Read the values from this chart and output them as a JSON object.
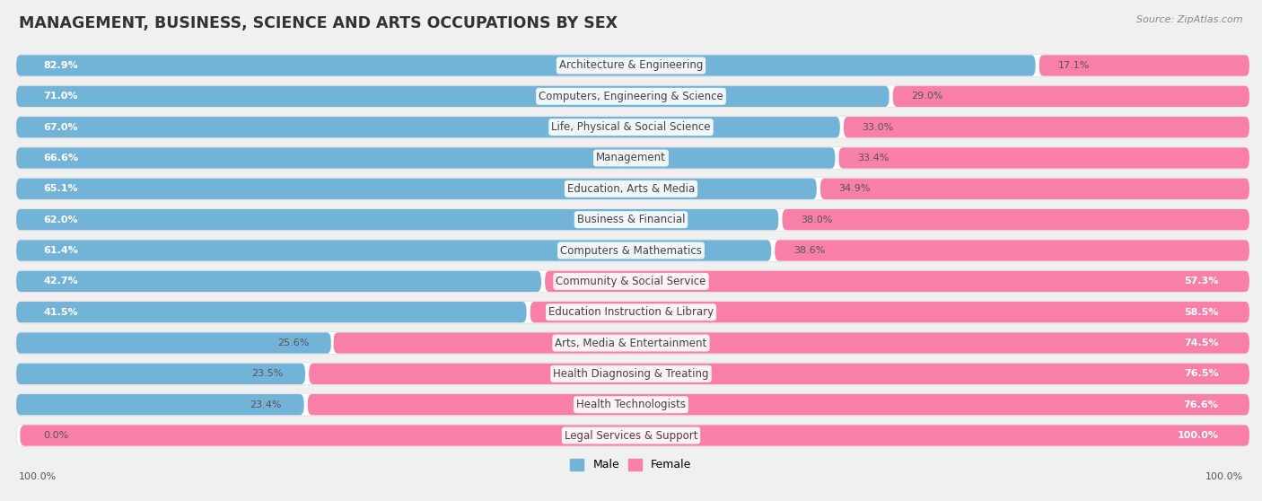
{
  "title": "MANAGEMENT, BUSINESS, SCIENCE AND ARTS OCCUPATIONS BY SEX",
  "source": "Source: ZipAtlas.com",
  "categories": [
    "Architecture & Engineering",
    "Computers, Engineering & Science",
    "Life, Physical & Social Science",
    "Management",
    "Education, Arts & Media",
    "Business & Financial",
    "Computers & Mathematics",
    "Community & Social Service",
    "Education Instruction & Library",
    "Arts, Media & Entertainment",
    "Health Diagnosing & Treating",
    "Health Technologists",
    "Legal Services & Support"
  ],
  "male": [
    82.9,
    71.0,
    67.0,
    66.6,
    65.1,
    62.0,
    61.4,
    42.7,
    41.5,
    25.6,
    23.5,
    23.4,
    0.0
  ],
  "female": [
    17.1,
    29.0,
    33.0,
    33.4,
    34.9,
    38.0,
    38.6,
    57.3,
    58.5,
    74.5,
    76.5,
    76.6,
    100.0
  ],
  "male_color": "#74b3d8",
  "female_color": "#f87fa8",
  "bg_color": "#f0f0f0",
  "row_bg_color": "#ffffff",
  "title_fontsize": 12.5,
  "label_fontsize": 8.5,
  "value_fontsize": 8.0,
  "legend_fontsize": 9,
  "source_fontsize": 8
}
